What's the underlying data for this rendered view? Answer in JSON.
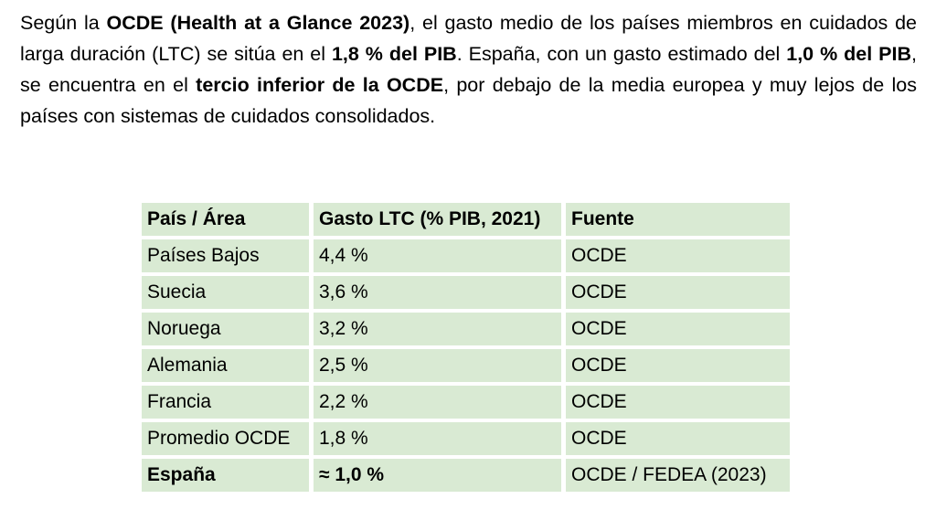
{
  "paragraph": {
    "segments": [
      {
        "text": "Según la ",
        "bold": false
      },
      {
        "text": "OCDE (Health at a Glance 2023)",
        "bold": true
      },
      {
        "text": ", el gasto medio de los países miembros en cuidados de larga duración (LTC) se sitúa en el ",
        "bold": false
      },
      {
        "text": "1,8 % del PIB",
        "bold": true
      },
      {
        "text": ". España, con un gasto estimado del ",
        "bold": false
      },
      {
        "text": "1,0 % del PIB",
        "bold": true
      },
      {
        "text": ", se encuentra en el ",
        "bold": false
      },
      {
        "text": "tercio inferior de la OCDE",
        "bold": true
      },
      {
        "text": ", por debajo de la media europea y muy lejos de los países con sistemas de cuidados consolidados.",
        "bold": false
      }
    ]
  },
  "table": {
    "columns": [
      "País / Área",
      "Gasto LTC (% PIB, 2021)",
      "Fuente"
    ],
    "rows": [
      {
        "cells": [
          "Países Bajos",
          "4,4 %",
          "OCDE"
        ],
        "bold_cells": []
      },
      {
        "cells": [
          "Suecia",
          "3,6 %",
          "OCDE"
        ],
        "bold_cells": []
      },
      {
        "cells": [
          "Noruega",
          "3,2 %",
          "OCDE"
        ],
        "bold_cells": []
      },
      {
        "cells": [
          "Alemania",
          "2,5 %",
          "OCDE"
        ],
        "bold_cells": []
      },
      {
        "cells": [
          "Francia",
          "2,2 %",
          "OCDE"
        ],
        "bold_cells": []
      },
      {
        "cells": [
          "Promedio OCDE",
          "1,8 %",
          "OCDE"
        ],
        "bold_cells": []
      },
      {
        "cells": [
          "España",
          "≈ 1,0 %",
          "OCDE / FEDEA (2023)"
        ],
        "bold_cells": [
          0,
          1
        ]
      }
    ],
    "colors": {
      "cell_bg": "#d9ead3",
      "gap": "#ffffff",
      "text": "#000000"
    }
  }
}
